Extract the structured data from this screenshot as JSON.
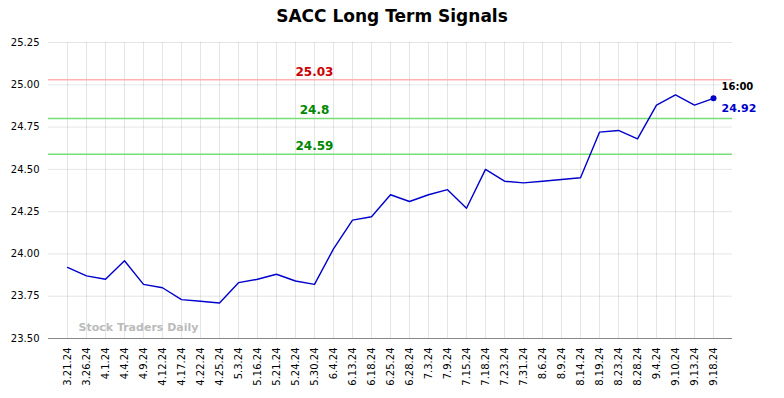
{
  "chart_data": {
    "type": "line",
    "title": "SACC Long Term Signals",
    "categories": [
      "3.21.24",
      "3.26.24",
      "4.1.24",
      "4.4.24",
      "4.9.24",
      "4.12.24",
      "4.17.24",
      "4.22.24",
      "4.25.24",
      "5.3.24",
      "5.16.24",
      "5.21.24",
      "5.24.24",
      "5.30.24",
      "6.4.24",
      "6.13.24",
      "6.18.24",
      "6.25.24",
      "6.28.24",
      "7.3.24",
      "7.9.24",
      "7.15.24",
      "7.18.24",
      "7.23.24",
      "7.31.24",
      "8.6.24",
      "8.9.24",
      "8.14.24",
      "8.19.24",
      "8.23.24",
      "8.28.24",
      "9.4.24",
      "9.10.24",
      "9.13.24",
      "9.18.24"
    ],
    "values": [
      23.92,
      23.87,
      23.85,
      23.96,
      23.82,
      23.8,
      23.73,
      23.72,
      23.71,
      23.83,
      23.85,
      23.88,
      23.84,
      23.82,
      24.03,
      24.2,
      24.22,
      24.35,
      24.31,
      24.35,
      24.38,
      24.27,
      24.5,
      24.43,
      24.42,
      24.43,
      24.44,
      24.45,
      24.72,
      24.73,
      24.68,
      24.88,
      24.94,
      24.88,
      24.92
    ],
    "color": "#0000cc",
    "ylim": [
      23.5,
      25.25
    ],
    "yticks": [
      {
        "value": 23.5,
        "label": "23.50"
      },
      23.75,
      {
        "value": 24,
        "label": "24.00"
      },
      24.25,
      {
        "value": 24.5,
        "label": "24.50"
      },
      24.75,
      {
        "value": 25,
        "label": "25.00"
      },
      25.25
    ],
    "grid": true,
    "hlines": [
      {
        "y": 25.03,
        "label": "25.03",
        "color": "#ffb3b3",
        "label_color": "#cc0000"
      },
      {
        "y": 24.8,
        "label": "24.8",
        "color": "#77dd77",
        "label_color": "#008800"
      },
      {
        "y": 24.59,
        "label": "24.59",
        "color": "#77dd77",
        "label_color": "#008800"
      }
    ],
    "annotations": [
      {
        "text": "16:00",
        "x": "9.18.24",
        "y": 24.92,
        "color": "black"
      },
      {
        "text": "24.92",
        "x": "9.18.24",
        "y": 24.92,
        "color": "#0000cc"
      },
      {
        "text": "Stock Traders Daily",
        "color": "#bbbbbb"
      }
    ]
  }
}
